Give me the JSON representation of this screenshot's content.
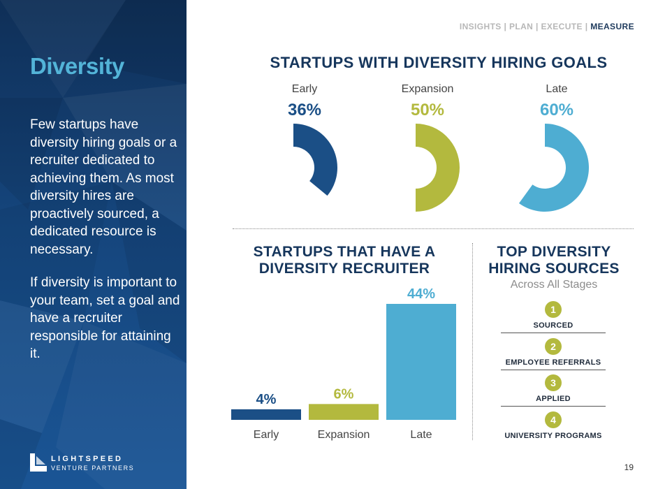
{
  "nav": {
    "items": [
      "INSIGHTS",
      "PLAN",
      "EXECUTE"
    ],
    "separator": "|",
    "active": "MEASURE"
  },
  "sidebar": {
    "title": "Diversity",
    "paragraph1": "Few startups have diversity hiring goals or a recruiter dedicated to achieving them. As most diversity hires are proactively sourced, a dedicated resource is necessary.",
    "paragraph2": "If diversity is important to your team, set a goal and have a recruiter responsible for attaining it.",
    "logo": {
      "line1": "LIGHTSPEED",
      "line2": "VENTURE PARTNERS"
    }
  },
  "colors": {
    "early": "#1b4f86",
    "expansion": "#b3b93e",
    "late": "#4eadd2",
    "heading": "#16365c",
    "sidebar_title": "#53b4d8"
  },
  "goals": {
    "title": "STARTUPS WITH DIVERSITY HIRING GOALS",
    "items": [
      {
        "label": "Early",
        "value_label": "36%"
      },
      {
        "label": "Expansion",
        "value_label": "50%"
      },
      {
        "label": "Late",
        "value_label": "60%"
      }
    ]
  },
  "recruiter": {
    "title_line1": "STARTUPS THAT HAVE A",
    "title_line2": "DIVERSITY RECRUITER"
  },
  "sources": {
    "title_line1": "TOP DIVERSITY",
    "title_line2": "HIRING SOURCES",
    "subtitle": "Across All Stages",
    "items": [
      {
        "num": "1",
        "label": "SOURCED"
      },
      {
        "num": "2",
        "label": "EMPLOYEE REFERRALS"
      },
      {
        "num": "3",
        "label": "APPLIED"
      },
      {
        "num": "4",
        "label": "UNIVERSITY PROGRAMS"
      }
    ]
  },
  "page_number": "19",
  "chart_data": [
    {
      "type": "pie",
      "title": "STARTUPS WITH DIVERSITY HIRING GOALS",
      "categories": [
        "Early",
        "Expansion",
        "Late"
      ],
      "values": [
        36,
        50,
        60
      ],
      "unit": "%"
    },
    {
      "type": "bar",
      "title": "STARTUPS THAT HAVE A DIVERSITY RECRUITER",
      "categories": [
        "Early",
        "Expansion",
        "Late"
      ],
      "values": [
        4,
        6,
        44
      ],
      "value_labels": [
        "4%",
        "6%",
        "44%"
      ],
      "unit": "%"
    }
  ]
}
